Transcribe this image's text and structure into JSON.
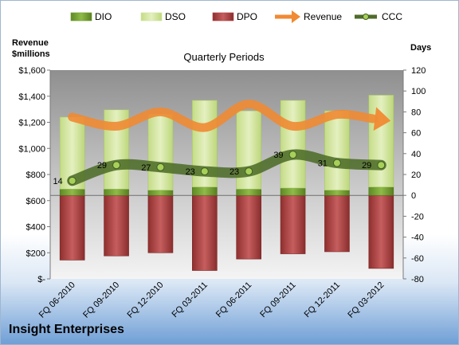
{
  "chart_data": {
    "type": "bar",
    "title": "Quarterly Periods",
    "company": "Insight Enterprises",
    "left_axis_title": [
      "Revenue",
      "$millions"
    ],
    "right_axis_title": "Days",
    "left_ylim": [
      0,
      1600
    ],
    "left_ticks": [
      0,
      200,
      400,
      600,
      800,
      1000,
      1200,
      1400,
      1600
    ],
    "left_tick_labels": [
      "$-",
      "$200",
      "$400",
      "$600",
      "$800",
      "$1,000",
      "$1,200",
      "$1,400",
      "$1,600"
    ],
    "right_ylim": [
      -80,
      120
    ],
    "right_ticks": [
      -80,
      -60,
      -40,
      -20,
      0,
      20,
      40,
      60,
      80,
      100,
      120
    ],
    "categories": [
      "FQ 06-2010",
      "FQ 09-2010",
      "FQ 12-2010",
      "FQ 03-2011",
      "FQ 06-2011",
      "FQ 09-2011",
      "FQ 12-2011",
      "FQ 03-2012"
    ],
    "series": [
      {
        "name": "DIO",
        "type": "stacked-bar",
        "axis": "right",
        "color": "#6e9b2e",
        "values": [
          6,
          6,
          5,
          8,
          6,
          7,
          5,
          8
        ]
      },
      {
        "name": "DSO",
        "type": "stacked-bar",
        "axis": "right",
        "color": "#d3e5a0",
        "values": [
          69,
          76,
          73,
          83,
          75,
          84,
          76,
          88
        ]
      },
      {
        "name": "DPO",
        "type": "stacked-bar",
        "axis": "right",
        "color": "#b24545",
        "values": [
          -62,
          -58,
          -55,
          -72,
          -61,
          -56,
          -54,
          -70
        ]
      },
      {
        "name": "Revenue",
        "type": "line",
        "axis": "left",
        "color": "#f08a33",
        "values": [
          1240,
          1170,
          1280,
          1160,
          1340,
          1170,
          1260,
          1220
        ]
      },
      {
        "name": "CCC",
        "type": "line",
        "axis": "right",
        "color": "#4f6b2a",
        "values": [
          14,
          29,
          27,
          23,
          23,
          39,
          31,
          29
        ]
      }
    ],
    "data_labels": [
      "14",
      "29",
      "27",
      "23",
      "23",
      "39",
      "31",
      "29"
    ],
    "grid": false,
    "legend": "top"
  }
}
